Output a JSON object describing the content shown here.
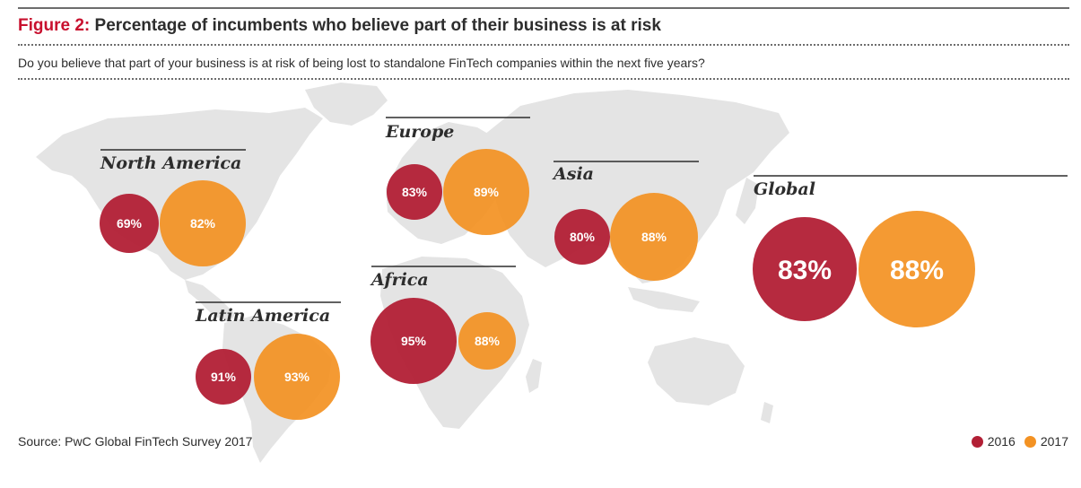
{
  "figure": {
    "label": "Figure 2:",
    "title": "Percentage of incumbents who believe part of their business is at risk",
    "subtitle": "Do you believe that part of your business is at risk of being lost to standalone FinTech companies within the next five years?",
    "source": "PwC Global FinTech Survey 2017"
  },
  "colors": {
    "2016": "#b21f35",
    "2017": "#f39223",
    "map": "#e4e4e4",
    "rule": "#2d2d2d"
  },
  "chart_data": {
    "type": "bubble-map",
    "series": [
      {
        "name": "2016",
        "color": "#b21f35"
      },
      {
        "name": "2017",
        "color": "#f39223"
      }
    ],
    "regions": [
      {
        "name": "North America",
        "values": [
          69,
          82
        ],
        "labels": [
          "69%",
          "82%"
        ]
      },
      {
        "name": "Europe",
        "values": [
          83,
          89
        ],
        "labels": [
          "83%",
          "89%"
        ]
      },
      {
        "name": "Asia",
        "values": [
          80,
          88
        ],
        "labels": [
          "80%",
          "88%"
        ]
      },
      {
        "name": "Global",
        "values": [
          83,
          88
        ],
        "labels": [
          "83%",
          "88%"
        ]
      },
      {
        "name": "Africa",
        "values": [
          95,
          88
        ],
        "labels": [
          "95%",
          "88%"
        ]
      },
      {
        "name": "Latin America",
        "values": [
          91,
          93
        ],
        "labels": [
          "91%",
          "93%"
        ]
      }
    ],
    "legend": {
      "placement": "bottom-right",
      "entries": [
        "2016",
        "2017"
      ]
    }
  }
}
